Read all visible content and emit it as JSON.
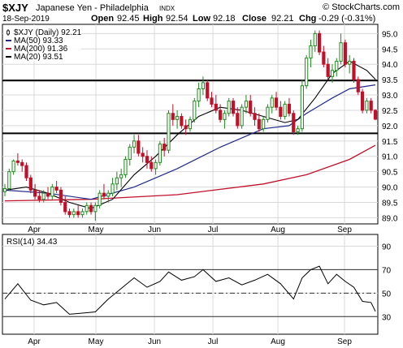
{
  "header": {
    "symbol": "$XJY",
    "name": "Japanese Yen - Philadelphia",
    "exchange": "INDX",
    "watermark": "© StockCharts.com",
    "date": "18-Sep-2019",
    "open_label": "Open",
    "open": "92.45",
    "high_label": "High",
    "high": "92.54",
    "low_label": "Low",
    "low": "92.18",
    "close_label": "Close",
    "close": "92.21",
    "chg_label": "Chg",
    "chg": "-0.29 (-0.31%)"
  },
  "legend": [
    {
      "label": "$XJY (Daily) 92.21",
      "color": "#000000",
      "icon": "candlestick-icon"
    },
    {
      "label": "MA(50) 93.33",
      "color": "#1f2a8c",
      "icon": "line-swatch"
    },
    {
      "label": "MA(200) 91.36",
      "color": "#c0102a",
      "icon": "line-swatch"
    },
    {
      "label": "MA(20) 93.51",
      "color": "#000000",
      "icon": "line-swatch"
    }
  ],
  "rsi_legend": "RSI(14) 34.43",
  "colors": {
    "up": "#1e8c1e",
    "down": "#c0102a",
    "ma50": "#1f2a8c",
    "ma200": "#c0102a",
    "ma20": "#000000",
    "grid": "#d9d9d9",
    "rsi": "#000000"
  },
  "chart_data": [
    {
      "type": "candlestick",
      "title": "$XJY Japanese Yen - Philadelphia INDX",
      "y_ticks": [
        "89.0",
        "89.5",
        "90.0",
        "90.5",
        "91.0",
        "91.5",
        "92.0",
        "92.5",
        "93.0",
        "93.5",
        "94.0",
        "94.5",
        "95.0"
      ],
      "ylim": [
        88.8,
        95.3
      ],
      "x_ticks": [
        {
          "label": "Apr",
          "day": 11
        },
        {
          "label": "May",
          "day": 42
        },
        {
          "label": "Jun",
          "day": 73
        },
        {
          "label": "Jul",
          "day": 103
        },
        {
          "label": "Aug",
          "day": 134
        },
        {
          "label": "Sep",
          "day": 165
        }
      ],
      "xlim": [
        0,
        185
      ],
      "horizontal_lines": [
        93.47,
        91.75
      ],
      "candles": [
        {
          "day": 0,
          "o": 89.85,
          "h": 90.1,
          "l": 89.7,
          "c": 89.95
        },
        {
          "day": 1,
          "o": 89.95,
          "h": 90.6,
          "l": 89.9,
          "c": 90.5
        },
        {
          "day": 2,
          "o": 90.5,
          "h": 90.9,
          "l": 90.4,
          "c": 90.85
        },
        {
          "day": 3,
          "o": 90.85,
          "h": 91.1,
          "l": 90.7,
          "c": 90.8
        },
        {
          "day": 4,
          "o": 90.8,
          "h": 90.9,
          "l": 90.5,
          "c": 90.7
        },
        {
          "day": 5,
          "o": 90.7,
          "h": 90.8,
          "l": 90.2,
          "c": 90.3
        },
        {
          "day": 6,
          "o": 90.3,
          "h": 90.4,
          "l": 89.8,
          "c": 89.9
        },
        {
          "day": 7,
          "o": 89.9,
          "h": 90.1,
          "l": 89.6,
          "c": 89.7
        },
        {
          "day": 8,
          "o": 89.7,
          "h": 89.9,
          "l": 89.5,
          "c": 89.6
        },
        {
          "day": 9,
          "o": 89.6,
          "h": 89.9,
          "l": 89.5,
          "c": 89.8
        },
        {
          "day": 10,
          "o": 89.8,
          "h": 90.0,
          "l": 89.6,
          "c": 89.7
        },
        {
          "day": 11,
          "o": 89.7,
          "h": 90.1,
          "l": 89.6,
          "c": 90.0
        },
        {
          "day": 12,
          "o": 90.0,
          "h": 90.2,
          "l": 89.8,
          "c": 89.9
        },
        {
          "day": 13,
          "o": 89.9,
          "h": 90.0,
          "l": 89.4,
          "c": 89.5
        },
        {
          "day": 14,
          "o": 89.5,
          "h": 89.7,
          "l": 89.1,
          "c": 89.2
        },
        {
          "day": 15,
          "o": 89.2,
          "h": 89.3,
          "l": 89.0,
          "c": 89.1
        },
        {
          "day": 16,
          "o": 89.1,
          "h": 89.3,
          "l": 89.0,
          "c": 89.2
        },
        {
          "day": 17,
          "o": 89.2,
          "h": 89.4,
          "l": 89.0,
          "c": 89.1
        },
        {
          "day": 18,
          "o": 89.1,
          "h": 89.3,
          "l": 89.0,
          "c": 89.2
        },
        {
          "day": 19,
          "o": 89.2,
          "h": 89.5,
          "l": 89.1,
          "c": 89.4
        },
        {
          "day": 20,
          "o": 89.4,
          "h": 89.5,
          "l": 89.1,
          "c": 89.2
        },
        {
          "day": 21,
          "o": 89.2,
          "h": 89.5,
          "l": 88.9,
          "c": 89.4
        },
        {
          "day": 22,
          "o": 89.4,
          "h": 89.9,
          "l": 89.3,
          "c": 89.8
        },
        {
          "day": 23,
          "o": 89.8,
          "h": 90.1,
          "l": 89.6,
          "c": 89.7
        },
        {
          "day": 24,
          "o": 89.7,
          "h": 89.9,
          "l": 89.5,
          "c": 89.8
        },
        {
          "day": 25,
          "o": 89.8,
          "h": 90.3,
          "l": 89.7,
          "c": 90.1
        },
        {
          "day": 26,
          "o": 90.1,
          "h": 90.5,
          "l": 89.9,
          "c": 90.3
        },
        {
          "day": 27,
          "o": 90.3,
          "h": 90.6,
          "l": 90.0,
          "c": 90.4
        },
        {
          "day": 28,
          "o": 90.4,
          "h": 91.0,
          "l": 90.3,
          "c": 90.9
        },
        {
          "day": 29,
          "o": 90.9,
          "h": 91.4,
          "l": 90.7,
          "c": 91.3
        },
        {
          "day": 30,
          "o": 91.3,
          "h": 91.7,
          "l": 91.1,
          "c": 91.5
        },
        {
          "day": 31,
          "o": 91.5,
          "h": 91.7,
          "l": 91.0,
          "c": 91.1
        },
        {
          "day": 32,
          "o": 91.1,
          "h": 91.3,
          "l": 90.8,
          "c": 91.0
        },
        {
          "day": 33,
          "o": 91.0,
          "h": 91.2,
          "l": 90.6,
          "c": 90.8
        },
        {
          "day": 34,
          "o": 90.8,
          "h": 91.0,
          "l": 90.5,
          "c": 90.6
        },
        {
          "day": 35,
          "o": 90.6,
          "h": 90.9,
          "l": 90.4,
          "c": 90.8
        },
        {
          "day": 36,
          "o": 90.8,
          "h": 91.5,
          "l": 90.7,
          "c": 91.4
        },
        {
          "day": 37,
          "o": 91.4,
          "h": 91.6,
          "l": 91.0,
          "c": 91.2
        },
        {
          "day": 38,
          "o": 91.2,
          "h": 92.5,
          "l": 91.1,
          "c": 92.4
        },
        {
          "day": 39,
          "o": 92.4,
          "h": 92.7,
          "l": 92.0,
          "c": 92.2
        },
        {
          "day": 40,
          "o": 92.2,
          "h": 92.5,
          "l": 91.9,
          "c": 92.3
        },
        {
          "day": 41,
          "o": 92.3,
          "h": 92.4,
          "l": 91.9,
          "c": 92.0
        },
        {
          "day": 42,
          "o": 92.0,
          "h": 92.2,
          "l": 91.7,
          "c": 91.9
        },
        {
          "day": 43,
          "o": 91.9,
          "h": 92.3,
          "l": 91.8,
          "c": 92.2
        },
        {
          "day": 44,
          "o": 92.2,
          "h": 92.9,
          "l": 92.1,
          "c": 92.8
        },
        {
          "day": 45,
          "o": 92.8,
          "h": 93.4,
          "l": 92.6,
          "c": 93.2
        },
        {
          "day": 46,
          "o": 93.2,
          "h": 93.6,
          "l": 93.0,
          "c": 93.4
        },
        {
          "day": 47,
          "o": 93.4,
          "h": 93.5,
          "l": 92.8,
          "c": 92.9
        },
        {
          "day": 48,
          "o": 92.9,
          "h": 93.1,
          "l": 92.6,
          "c": 92.7
        },
        {
          "day": 49,
          "o": 92.7,
          "h": 93.0,
          "l": 92.4,
          "c": 92.5
        },
        {
          "day": 50,
          "o": 92.5,
          "h": 92.7,
          "l": 92.1,
          "c": 92.2
        },
        {
          "day": 51,
          "o": 92.2,
          "h": 92.5,
          "l": 91.9,
          "c": 92.4
        },
        {
          "day": 52,
          "o": 92.4,
          "h": 92.9,
          "l": 92.3,
          "c": 92.8
        },
        {
          "day": 53,
          "o": 92.8,
          "h": 92.9,
          "l": 92.3,
          "c": 92.4
        },
        {
          "day": 54,
          "o": 92.4,
          "h": 92.6,
          "l": 91.9,
          "c": 92.0
        },
        {
          "day": 55,
          "o": 92.0,
          "h": 92.7,
          "l": 91.9,
          "c": 92.6
        },
        {
          "day": 56,
          "o": 92.6,
          "h": 93.0,
          "l": 92.4,
          "c": 92.8
        },
        {
          "day": 57,
          "o": 92.8,
          "h": 93.0,
          "l": 92.3,
          "c": 92.4
        },
        {
          "day": 58,
          "o": 92.4,
          "h": 92.6,
          "l": 92.0,
          "c": 92.2
        },
        {
          "day": 59,
          "o": 92.2,
          "h": 92.4,
          "l": 91.8,
          "c": 91.9
        },
        {
          "day": 60,
          "o": 91.9,
          "h": 92.3,
          "l": 91.8,
          "c": 92.2
        },
        {
          "day": 61,
          "o": 92.2,
          "h": 92.7,
          "l": 92.1,
          "c": 92.6
        },
        {
          "day": 62,
          "o": 92.6,
          "h": 93.0,
          "l": 92.4,
          "c": 92.9
        },
        {
          "day": 63,
          "o": 92.9,
          "h": 93.1,
          "l": 92.5,
          "c": 92.6
        },
        {
          "day": 64,
          "o": 92.6,
          "h": 92.8,
          "l": 92.2,
          "c": 92.3
        },
        {
          "day": 65,
          "o": 92.3,
          "h": 92.8,
          "l": 92.2,
          "c": 92.7
        },
        {
          "day": 66,
          "o": 92.7,
          "h": 92.9,
          "l": 92.3,
          "c": 92.4
        },
        {
          "day": 67,
          "o": 92.4,
          "h": 92.5,
          "l": 91.7,
          "c": 91.8
        },
        {
          "day": 68,
          "o": 91.8,
          "h": 92.0,
          "l": 91.7,
          "c": 91.9
        },
        {
          "day": 69,
          "o": 91.9,
          "h": 93.5,
          "l": 91.8,
          "c": 93.3
        },
        {
          "day": 70,
          "o": 93.3,
          "h": 94.3,
          "l": 93.2,
          "c": 94.2
        },
        {
          "day": 71,
          "o": 94.2,
          "h": 94.8,
          "l": 93.9,
          "c": 94.6
        },
        {
          "day": 72,
          "o": 94.6,
          "h": 95.1,
          "l": 94.4,
          "c": 95.0
        },
        {
          "day": 73,
          "o": 95.0,
          "h": 95.1,
          "l": 94.3,
          "c": 94.4
        },
        {
          "day": 74,
          "o": 94.4,
          "h": 94.6,
          "l": 93.9,
          "c": 94.0
        },
        {
          "day": 75,
          "o": 94.0,
          "h": 94.2,
          "l": 93.5,
          "c": 93.6
        },
        {
          "day": 76,
          "o": 93.6,
          "h": 94.0,
          "l": 93.4,
          "c": 93.8
        },
        {
          "day": 77,
          "o": 93.8,
          "h": 94.2,
          "l": 93.6,
          "c": 94.1
        },
        {
          "day": 78,
          "o": 94.1,
          "h": 95.0,
          "l": 94.0,
          "c": 94.7
        },
        {
          "day": 79,
          "o": 94.7,
          "h": 94.8,
          "l": 93.9,
          "c": 94.0
        },
        {
          "day": 80,
          "o": 94.0,
          "h": 94.3,
          "l": 93.7,
          "c": 94.1
        },
        {
          "day": 81,
          "o": 94.1,
          "h": 94.2,
          "l": 93.4,
          "c": 93.5
        },
        {
          "day": 82,
          "o": 93.5,
          "h": 93.6,
          "l": 93.0,
          "c": 93.1
        },
        {
          "day": 83,
          "o": 93.1,
          "h": 93.2,
          "l": 92.4,
          "c": 92.5
        },
        {
          "day": 84,
          "o": 92.5,
          "h": 92.9,
          "l": 92.4,
          "c": 92.8
        },
        {
          "day": 85,
          "o": 92.8,
          "h": 92.9,
          "l": 92.4,
          "c": 92.5
        },
        {
          "day": 86,
          "o": 92.5,
          "h": 92.54,
          "l": 92.18,
          "c": 92.21
        }
      ],
      "ma50": [
        [
          0,
          89.9
        ],
        [
          10,
          89.8
        ],
        [
          20,
          89.6
        ],
        [
          30,
          90.0
        ],
        [
          40,
          90.6
        ],
        [
          50,
          91.3
        ],
        [
          60,
          91.9
        ],
        [
          66,
          92.0
        ],
        [
          70,
          92.4
        ],
        [
          76,
          92.9
        ],
        [
          80,
          93.2
        ],
        [
          86,
          93.33
        ]
      ],
      "ma200": [
        [
          0,
          89.55
        ],
        [
          20,
          89.6
        ],
        [
          40,
          89.75
        ],
        [
          60,
          90.1
        ],
        [
          70,
          90.4
        ],
        [
          80,
          90.9
        ],
        [
          86,
          91.36
        ]
      ],
      "ma20": [
        [
          0,
          89.9
        ],
        [
          5,
          90.0
        ],
        [
          10,
          89.8
        ],
        [
          15,
          89.5
        ],
        [
          20,
          89.3
        ],
        [
          25,
          89.6
        ],
        [
          30,
          90.4
        ],
        [
          35,
          91.0
        ],
        [
          40,
          91.7
        ],
        [
          45,
          92.3
        ],
        [
          50,
          92.6
        ],
        [
          55,
          92.5
        ],
        [
          60,
          92.3
        ],
        [
          65,
          92.1
        ],
        [
          68,
          92.2
        ],
        [
          72,
          92.9
        ],
        [
          76,
          93.7
        ],
        [
          80,
          94.1
        ],
        [
          84,
          93.8
        ],
        [
          86,
          93.51
        ]
      ]
    },
    {
      "type": "line",
      "title": "RSI(14) 34.43",
      "y_ticks": [
        "30",
        "50",
        "70",
        "90"
      ],
      "ylim": [
        15,
        100
      ],
      "reference_lines": [
        30,
        50,
        70
      ],
      "values": [
        [
          0,
          45
        ],
        [
          3,
          58
        ],
        [
          6,
          44
        ],
        [
          9,
          40
        ],
        [
          12,
          42
        ],
        [
          15,
          32
        ],
        [
          18,
          33
        ],
        [
          21,
          34
        ],
        [
          24,
          45
        ],
        [
          27,
          54
        ],
        [
          30,
          63
        ],
        [
          33,
          55
        ],
        [
          36,
          60
        ],
        [
          38,
          68
        ],
        [
          41,
          61
        ],
        [
          44,
          64
        ],
        [
          46,
          70
        ],
        [
          49,
          60
        ],
        [
          52,
          63
        ],
        [
          55,
          57
        ],
        [
          58,
          61
        ],
        [
          61,
          66
        ],
        [
          64,
          58
        ],
        [
          67,
          45
        ],
        [
          69,
          63
        ],
        [
          71,
          70
        ],
        [
          73,
          73
        ],
        [
          75,
          58
        ],
        [
          77,
          66
        ],
        [
          79,
          60
        ],
        [
          81,
          55
        ],
        [
          83,
          43
        ],
        [
          85,
          42
        ],
        [
          86,
          34.43
        ]
      ]
    }
  ]
}
